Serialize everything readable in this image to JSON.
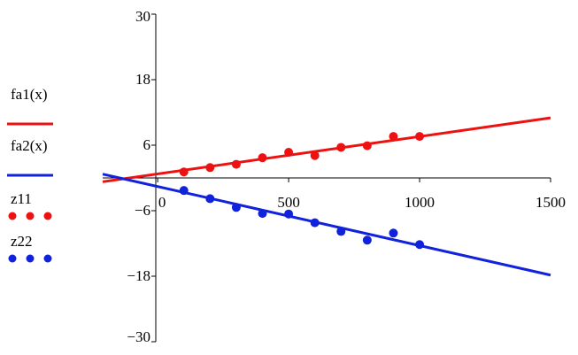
{
  "chart_data": {
    "type": "scatter",
    "x_ticks": [
      "0",
      "500",
      "1000",
      "1500"
    ],
    "y_ticks": [
      "30",
      "18",
      "6",
      "−6",
      "−18",
      "−30"
    ],
    "xlim": [
      -210,
      1500
    ],
    "ylim": [
      -30,
      30
    ],
    "grid": false,
    "legend_position": "left",
    "series": [
      {
        "name": "fa1(x)",
        "kind": "line",
        "color": "#ee1111",
        "x": [
          -210,
          1500
        ],
        "y": [
          -0.7,
          11.0
        ]
      },
      {
        "name": "fa2(x)",
        "kind": "line",
        "color": "#1122dd",
        "x": [
          -210,
          1500
        ],
        "y": [
          0.7,
          -17.8
        ]
      },
      {
        "name": "z11",
        "kind": "points",
        "color": "#ee1111",
        "x": [
          100,
          200,
          300,
          400,
          500,
          600,
          700,
          800,
          900,
          1000
        ],
        "y": [
          1.1,
          1.9,
          2.5,
          3.7,
          4.7,
          4.1,
          5.6,
          5.9,
          7.6,
          7.6
        ]
      },
      {
        "name": "z22",
        "kind": "points",
        "color": "#1122dd",
        "x": [
          100,
          200,
          300,
          400,
          500,
          600,
          700,
          800,
          900,
          1000
        ],
        "y": [
          -2.3,
          -3.8,
          -5.4,
          -6.5,
          -6.6,
          -8.2,
          -9.8,
          -11.4,
          -10.1,
          -12.2
        ]
      }
    ]
  }
}
